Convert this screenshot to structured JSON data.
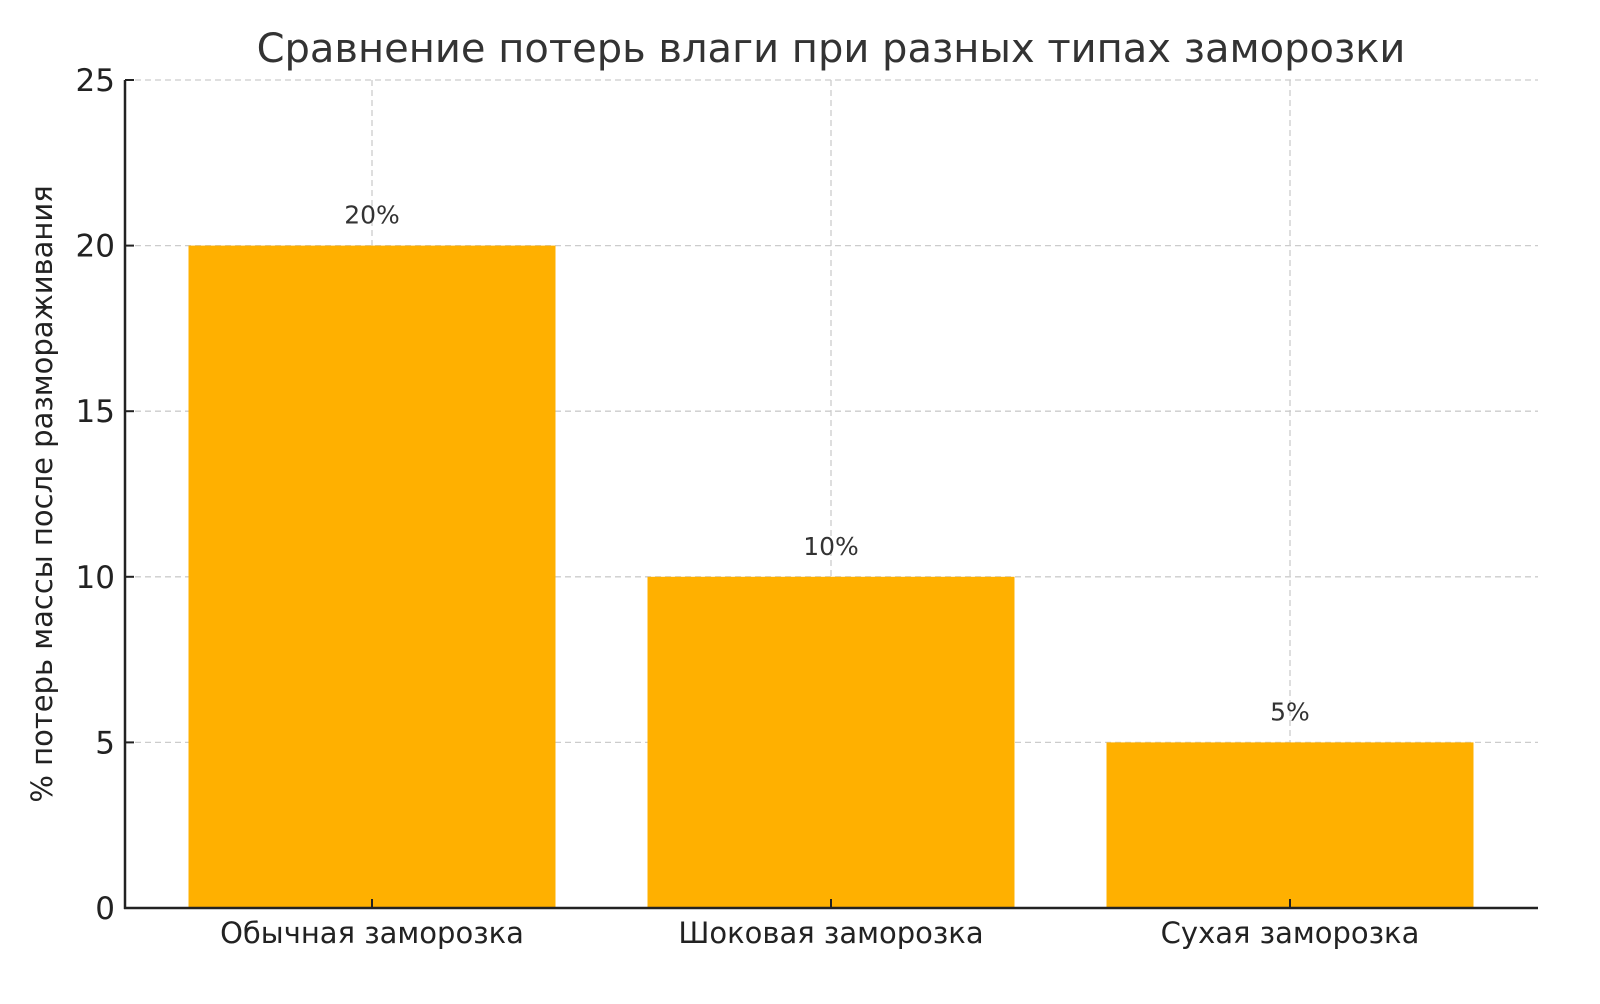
{
  "chart_data": {
    "type": "bar",
    "title": "Сравнение потерь влаги при разных типах заморозки",
    "xlabel": "",
    "ylabel": "% потерь массы после размораживания",
    "categories": [
      "Обычная заморозка",
      "Шоковая заморозка",
      "Сухая заморозка"
    ],
    "values": [
      20,
      10,
      5
    ],
    "data_labels": [
      "20%",
      "10%",
      "5%"
    ],
    "ylim": [
      0,
      25
    ],
    "yticks": [
      0,
      5,
      10,
      15,
      20,
      25
    ],
    "grid": true,
    "legend": null,
    "colors": {
      "bar": "#FFB000",
      "axis": "#222222",
      "grid": "#CCCCCC",
      "text": "#333333"
    }
  }
}
